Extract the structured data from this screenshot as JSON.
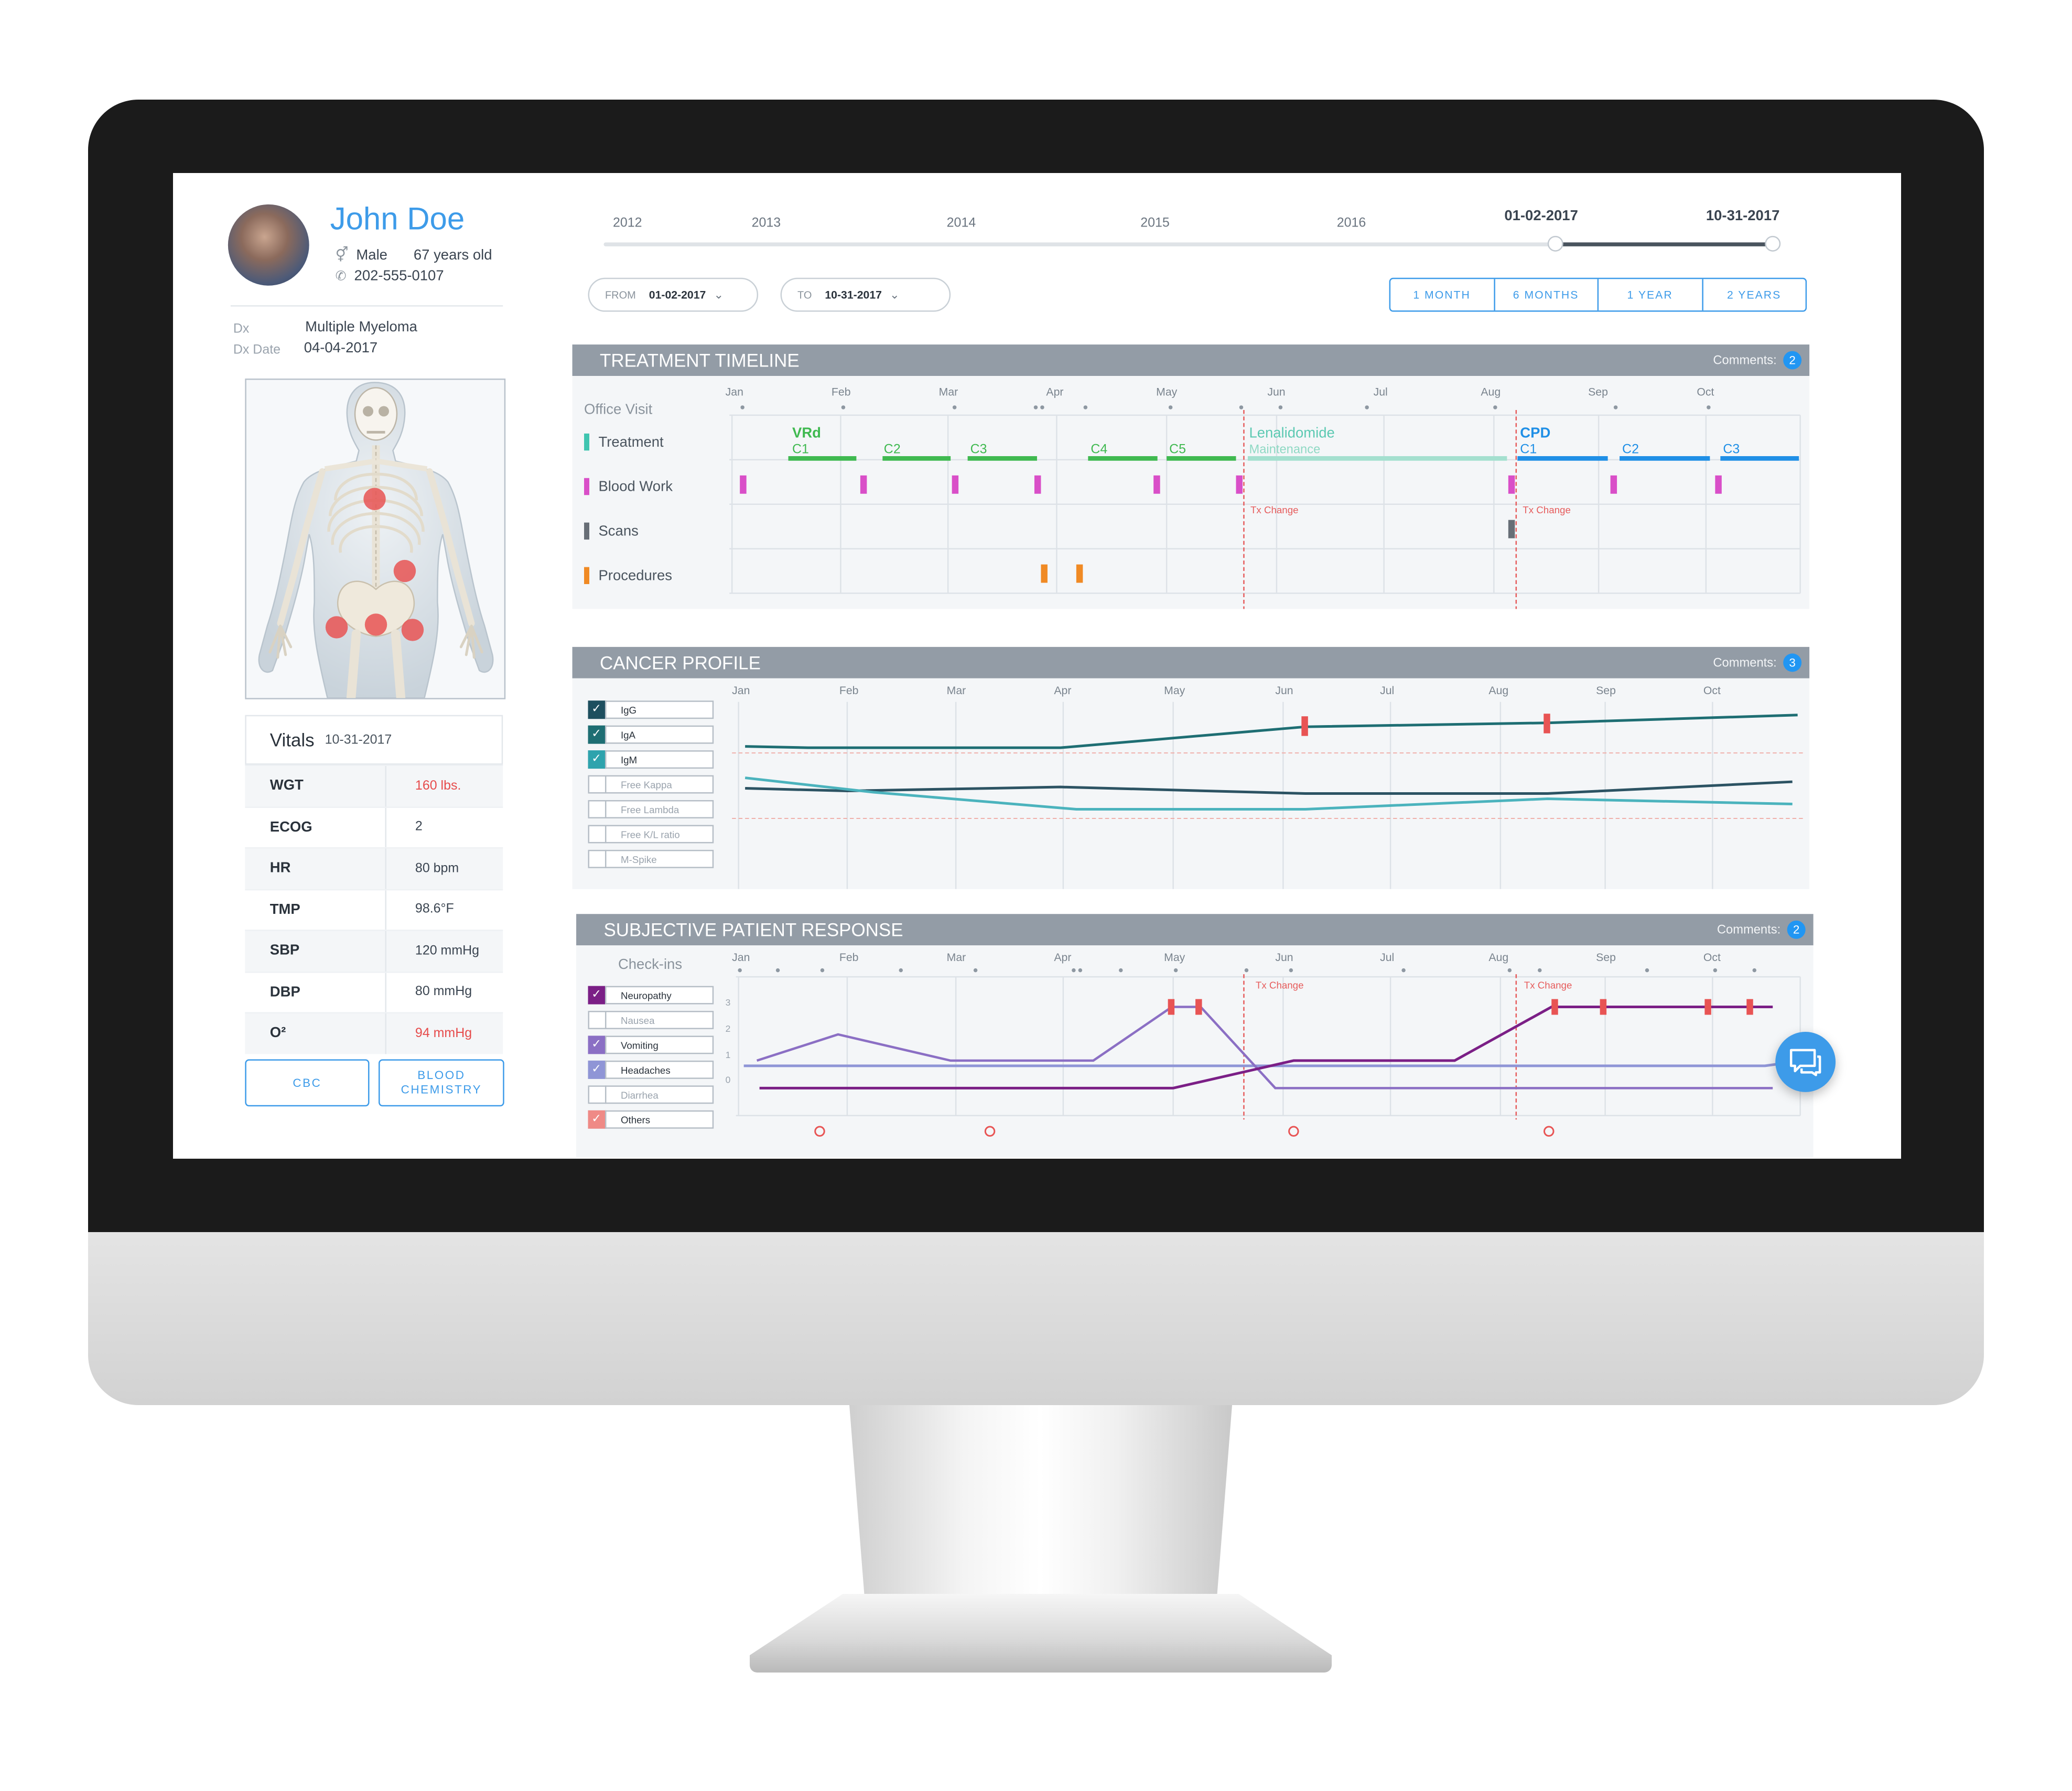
{
  "patient": {
    "name": "John Doe",
    "gender": "Male",
    "age": "67 years old",
    "phone": "202-555-0107",
    "dx_label": "Dx",
    "dx_value": "Multiple Myeloma",
    "dx_date_label": "Dx Date",
    "dx_date_value": "04-04-2017",
    "tumor_sites": [
      "chest",
      "left abdomen",
      "pelvis left",
      "pelvis center",
      "pelvis right"
    ]
  },
  "vitals": {
    "title": "Vitals",
    "date": "10-31-2017",
    "rows": [
      {
        "key": "WGT",
        "value": "160 lbs.",
        "alert": true
      },
      {
        "key": "ECOG",
        "value": "2",
        "alert": false
      },
      {
        "key": "HR",
        "value": "80 bpm",
        "alert": false
      },
      {
        "key": "TMP",
        "value": "98.6°F",
        "alert": false
      },
      {
        "key": "SBP",
        "value": "120 mmHg",
        "alert": false
      },
      {
        "key": "DBP",
        "value": "80 mmHg",
        "alert": false
      },
      {
        "key": "O²",
        "value": "94 mmHg",
        "alert": true
      }
    ],
    "buttons": {
      "cbc": "CBC",
      "blood_chemistry_1": "BLOOD",
      "blood_chemistry_2": "CHEMISTRY"
    }
  },
  "range_slider": {
    "years": [
      "2012",
      "2013",
      "2014",
      "2015",
      "2016"
    ],
    "start_label": "01-02-2017",
    "end_label": "10-31-2017"
  },
  "filters": {
    "from_label": "FROM",
    "from_value": "01-02-2017",
    "to_label": "TO",
    "to_value": "10-31-2017",
    "range_buttons": [
      "1 MONTH",
      "6 MONTHS",
      "1 YEAR",
      "2 YEARS"
    ]
  },
  "months": [
    "Jan",
    "Feb",
    "Mar",
    "Apr",
    "May",
    "Jun",
    "Jul",
    "Aug",
    "Sep",
    "Oct"
  ],
  "treatment_timeline": {
    "title": "TREATMENT TIMELINE",
    "comments_label": "Comments:",
    "comments_count": "2",
    "row_labels": {
      "office_visit": "Office Visit",
      "treatment": "Treatment",
      "blood_work": "Blood Work",
      "scans": "Scans",
      "procedures": "Procedures"
    },
    "regimens": {
      "vrd": "VRd",
      "lenalidomide": "Lenalidomide",
      "maintenance": "Maintenance",
      "cpd": "CPD"
    },
    "cycles": [
      "C1",
      "C2",
      "C3",
      "C4",
      "C5",
      "C1",
      "C2",
      "C3"
    ],
    "tx_change": "Tx Change",
    "colors": {
      "treatment": "#3fb950",
      "blood_work": "#d94fc8",
      "scans": "#676e76",
      "procedures": "#f08a24",
      "maintenance": "#8fd9c4",
      "cpd": "#1f8fe6",
      "tx_change": "#e65c5c"
    }
  },
  "cancer_profile": {
    "title": "CANCER PROFILE",
    "comments_label": "Comments:",
    "comments_count": "3",
    "markers": [
      {
        "label": "IgG",
        "checked": true
      },
      {
        "label": "IgA",
        "checked": true
      },
      {
        "label": "IgM",
        "checked": true
      },
      {
        "label": "Free Kappa",
        "checked": false
      },
      {
        "label": "Free Lambda",
        "checked": false
      },
      {
        "label": "Free K/L ratio",
        "checked": false
      },
      {
        "label": "M-Spike",
        "checked": false
      }
    ],
    "colors": {
      "IgG": "#1e6e73",
      "IgA": "#4bb3bd",
      "IgM": "#2c5363"
    }
  },
  "subjective_response": {
    "title": "SUBJECTIVE PATIENT RESPONSE",
    "comments_label": "Comments:",
    "comments_count": "2",
    "checkins_label": "Check-ins",
    "tx_change": "Tx Change",
    "y_ticks": [
      "3",
      "2",
      "1",
      "0"
    ],
    "symptoms": [
      {
        "label": "Neuropathy",
        "checked": true,
        "color": "#7b1f86"
      },
      {
        "label": "Nausea",
        "checked": false,
        "color": "#b6bec6"
      },
      {
        "label": "Vomiting",
        "checked": true,
        "color": "#8b6fc4"
      },
      {
        "label": "Headaches",
        "checked": true,
        "color": "#8f95d6"
      },
      {
        "label": "Diarrhea",
        "checked": false,
        "color": "#b6bec6"
      },
      {
        "label": "Others",
        "checked": true,
        "color": "#ef8a86"
      }
    ]
  },
  "chat_button": {
    "icon": "chat-bubbles-icon"
  }
}
